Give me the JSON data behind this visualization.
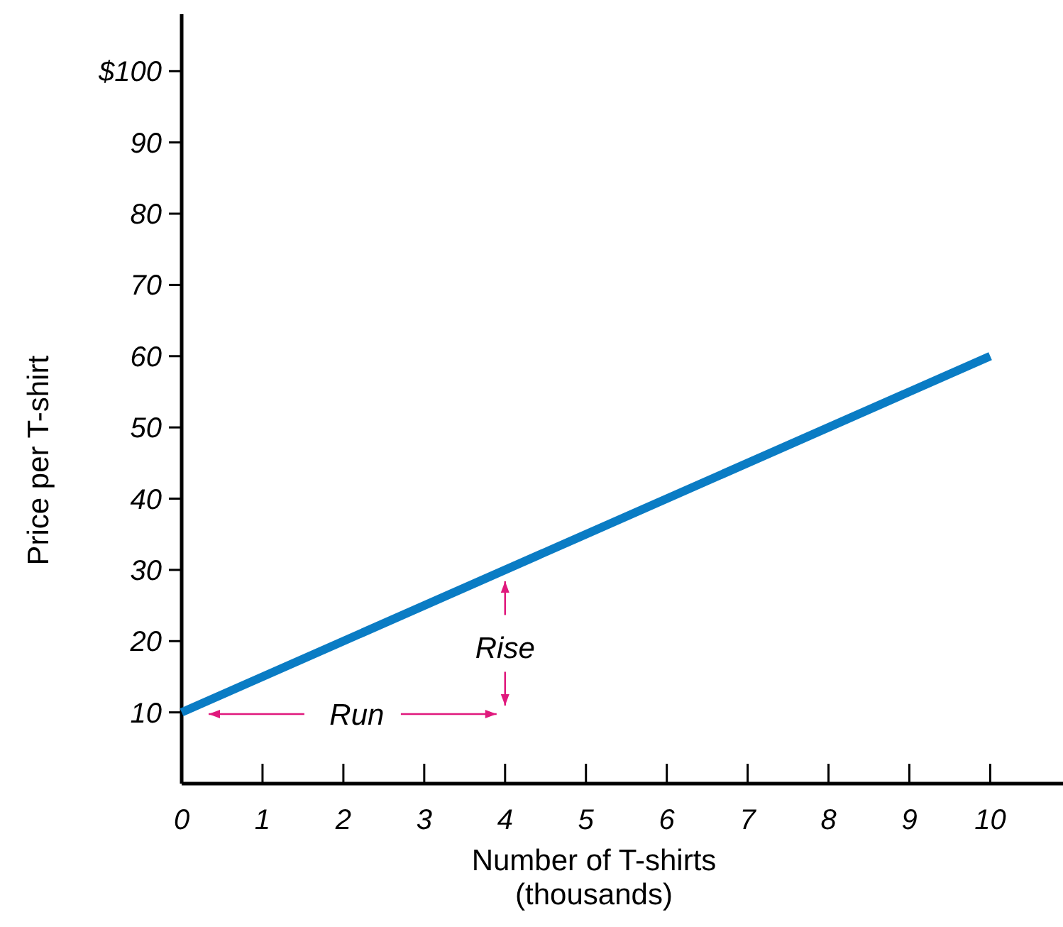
{
  "chart_data": {
    "type": "line",
    "xlabel": "Number of T-shirts\n(thousands)",
    "ylabel": "Price per T-shirt",
    "x": [
      0,
      10
    ],
    "series": [
      {
        "color": "#0a7cc4",
        "values": [
          10,
          60
        ]
      }
    ],
    "xlim": [
      0,
      10.9
    ],
    "ylim": [
      0,
      108
    ],
    "xticks": [
      0,
      1,
      2,
      3,
      4,
      5,
      6,
      7,
      8,
      9,
      10
    ],
    "yticks": [
      10,
      20,
      30,
      40,
      50,
      60,
      70,
      80,
      90,
      {
        "value": 100,
        "label": "$100"
      }
    ],
    "annotations": [
      "Run",
      {
        "text": "Rise",
        "x": 4,
        "y": 30
      }
    ]
  }
}
